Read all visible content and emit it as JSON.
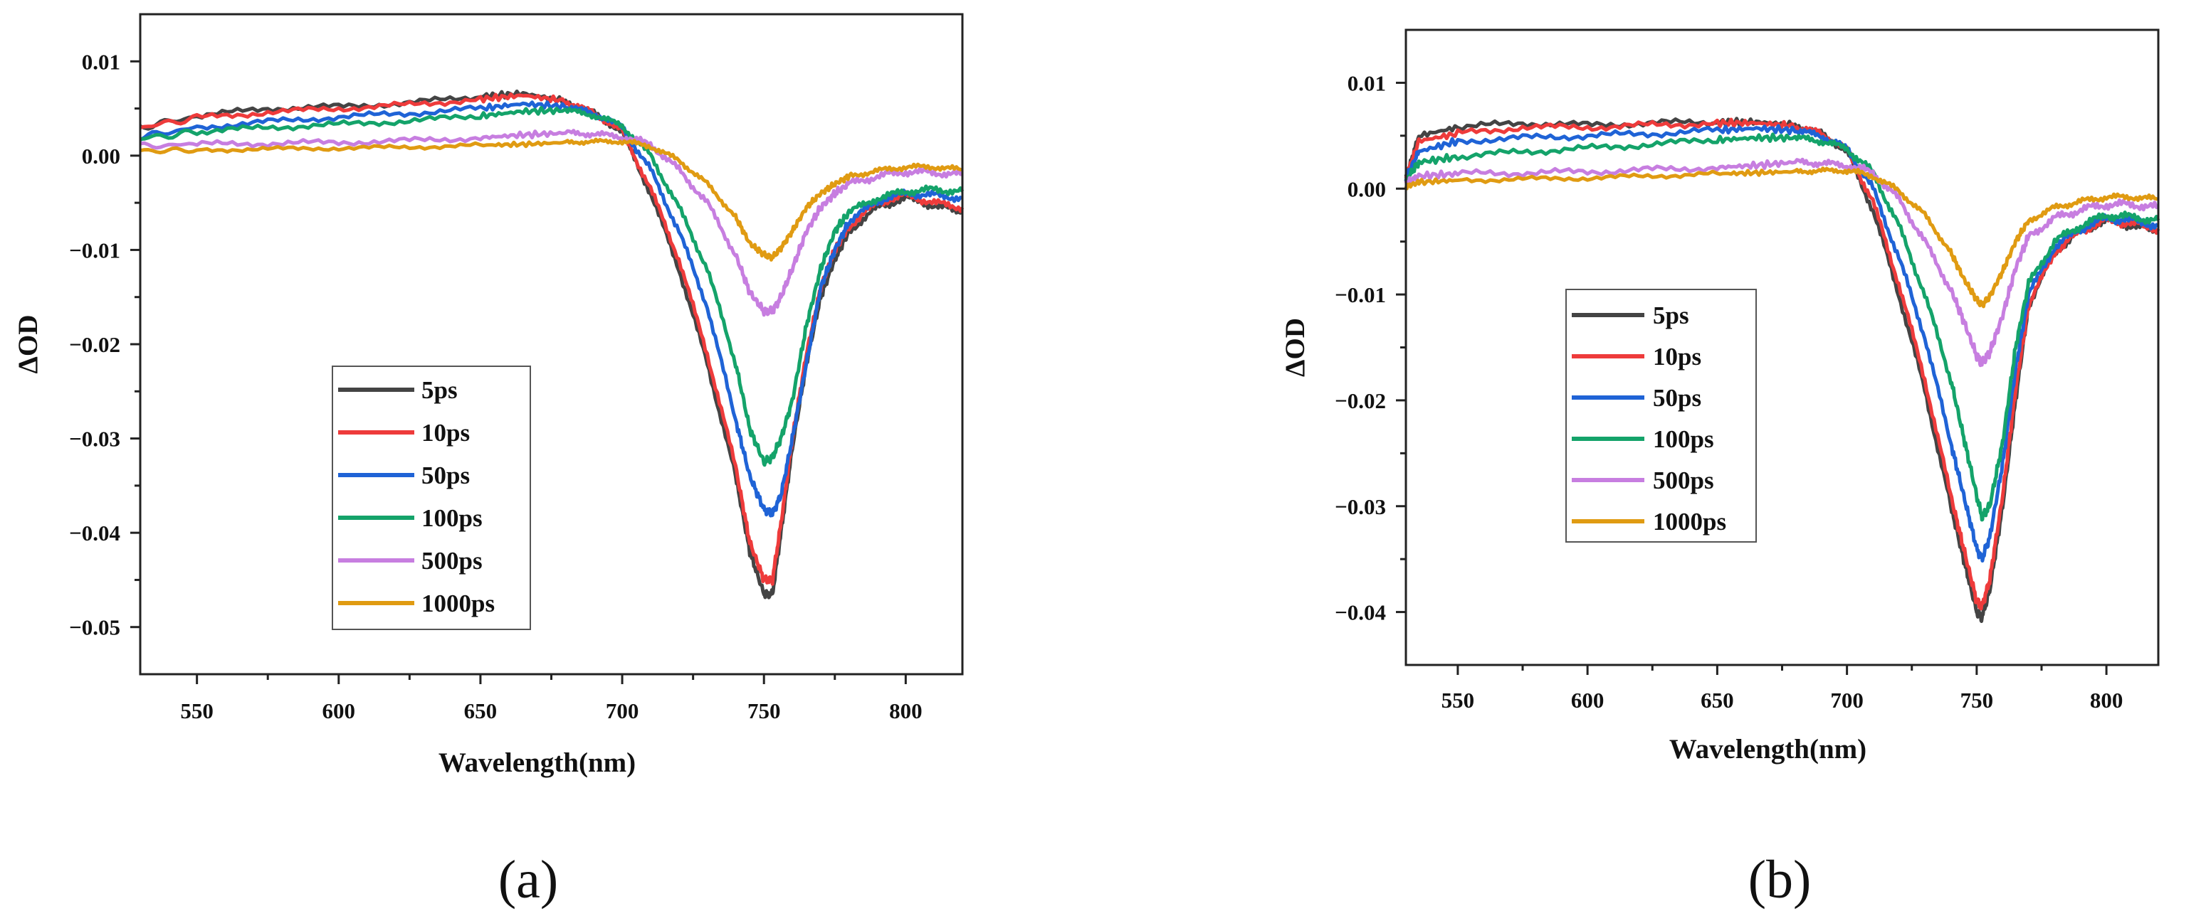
{
  "chart_data": [
    {
      "type": "line",
      "panel_label": "(a)",
      "xlabel": "Wavelength(nm)",
      "ylabel": "ΔOD",
      "xlim": [
        530,
        820
      ],
      "ylim": [
        -0.055,
        0.015
      ],
      "x_ticks": [
        550,
        600,
        650,
        700,
        750,
        800
      ],
      "x_tick_labels": [
        "550",
        "600",
        "650",
        "700",
        "750",
        "800"
      ],
      "y_ticks": [
        0.01,
        0.0,
        -0.01,
        -0.02,
        -0.03,
        -0.04,
        -0.05
      ],
      "y_tick_labels": [
        "0.01",
        "0.00",
        "−0.01",
        "−0.02",
        "−0.03",
        "−0.04",
        "−0.05"
      ],
      "legend_position": "lower-left",
      "series": [
        {
          "name": "5ps",
          "color": "#444444",
          "x": [
            530,
            550,
            575,
            600,
            625,
            650,
            665,
            680,
            690,
            700,
            710,
            720,
            730,
            740,
            745,
            750,
            753,
            756,
            760,
            765,
            770,
            775,
            780,
            790,
            800,
            810,
            820
          ],
          "y": [
            0.003,
            0.0042,
            0.005,
            0.0052,
            0.0056,
            0.0063,
            0.0066,
            0.0058,
            0.0045,
            0.0025,
            -0.004,
            -0.012,
            -0.022,
            -0.034,
            -0.042,
            -0.0465,
            -0.0465,
            -0.04,
            -0.031,
            -0.022,
            -0.015,
            -0.011,
            -0.008,
            -0.0055,
            -0.0045,
            -0.0053,
            -0.006
          ]
        },
        {
          "name": "10ps",
          "color": "#ee3b3b",
          "x": [
            530,
            550,
            575,
            600,
            625,
            650,
            665,
            680,
            690,
            700,
            710,
            720,
            730,
            740,
            745,
            750,
            753,
            756,
            760,
            765,
            770,
            775,
            780,
            790,
            800,
            810,
            820
          ],
          "y": [
            0.003,
            0.004,
            0.0046,
            0.005,
            0.0054,
            0.006,
            0.0064,
            0.0058,
            0.0045,
            0.0026,
            -0.0035,
            -0.011,
            -0.021,
            -0.033,
            -0.041,
            -0.045,
            -0.045,
            -0.039,
            -0.03,
            -0.021,
            -0.014,
            -0.01,
            -0.0075,
            -0.005,
            -0.0042,
            -0.005,
            -0.0055
          ]
        },
        {
          "name": "50ps",
          "color": "#1f63d6",
          "x": [
            530,
            550,
            575,
            600,
            625,
            650,
            665,
            680,
            690,
            700,
            710,
            720,
            730,
            740,
            745,
            750,
            753,
            756,
            760,
            765,
            770,
            775,
            780,
            790,
            800,
            810,
            820
          ],
          "y": [
            0.002,
            0.003,
            0.0036,
            0.0041,
            0.0045,
            0.005,
            0.0055,
            0.0052,
            0.0045,
            0.003,
            -0.0015,
            -0.008,
            -0.016,
            -0.028,
            -0.034,
            -0.0375,
            -0.038,
            -0.036,
            -0.03,
            -0.022,
            -0.014,
            -0.01,
            -0.007,
            -0.0048,
            -0.004,
            -0.0042,
            -0.0045
          ]
        },
        {
          "name": "100ps",
          "color": "#14a36a",
          "x": [
            530,
            550,
            575,
            600,
            625,
            650,
            665,
            680,
            690,
            700,
            710,
            720,
            730,
            740,
            745,
            750,
            753,
            756,
            760,
            765,
            770,
            775,
            780,
            790,
            800,
            810,
            820
          ],
          "y": [
            0.0018,
            0.0025,
            0.003,
            0.0033,
            0.0037,
            0.0042,
            0.0047,
            0.0048,
            0.0043,
            0.0032,
            0.0,
            -0.0055,
            -0.012,
            -0.022,
            -0.029,
            -0.0325,
            -0.032,
            -0.03,
            -0.026,
            -0.018,
            -0.012,
            -0.008,
            -0.006,
            -0.0045,
            -0.0038,
            -0.0036,
            -0.0038
          ]
        },
        {
          "name": "500ps",
          "color": "#c77ee0",
          "x": [
            530,
            550,
            575,
            600,
            625,
            650,
            665,
            680,
            690,
            700,
            710,
            720,
            730,
            740,
            745,
            750,
            753,
            756,
            760,
            765,
            770,
            775,
            780,
            790,
            800,
            810,
            820
          ],
          "y": [
            0.001,
            0.0012,
            0.0013,
            0.0014,
            0.0016,
            0.0019,
            0.0022,
            0.0024,
            0.0023,
            0.002,
            0.0012,
            -0.0015,
            -0.005,
            -0.0105,
            -0.0145,
            -0.0165,
            -0.0165,
            -0.015,
            -0.012,
            -0.008,
            -0.0055,
            -0.004,
            -0.003,
            -0.0022,
            -0.0017,
            -0.0018,
            -0.002
          ]
        },
        {
          "name": "1000ps",
          "color": "#e09b12",
          "x": [
            530,
            550,
            575,
            600,
            625,
            650,
            665,
            680,
            690,
            700,
            710,
            720,
            730,
            740,
            745,
            750,
            753,
            756,
            760,
            765,
            770,
            775,
            780,
            790,
            800,
            810,
            820
          ],
          "y": [
            0.0005,
            0.0006,
            0.0007,
            0.0008,
            0.0009,
            0.0011,
            0.0012,
            0.0014,
            0.0015,
            0.0015,
            0.001,
            -0.0005,
            -0.003,
            -0.0065,
            -0.0093,
            -0.0105,
            -0.0108,
            -0.0098,
            -0.008,
            -0.0055,
            -0.004,
            -0.003,
            -0.0022,
            -0.0016,
            -0.0012,
            -0.0012,
            -0.0015
          ]
        }
      ]
    },
    {
      "type": "line",
      "panel_label": "(b)",
      "xlabel": "Wavelength(nm)",
      "ylabel": "ΔOD",
      "xlim": [
        530,
        820
      ],
      "ylim": [
        -0.045,
        0.015
      ],
      "x_ticks": [
        550,
        600,
        650,
        700,
        750,
        800
      ],
      "x_tick_labels": [
        "550",
        "600",
        "650",
        "700",
        "750",
        "800"
      ],
      "y_ticks": [
        0.01,
        0.0,
        -0.01,
        -0.02,
        -0.03,
        -0.04
      ],
      "y_tick_labels": [
        "0.01",
        "0.00",
        "−0.01",
        "−0.02",
        "−0.03",
        "−0.04"
      ],
      "legend_position": "center-left",
      "series": [
        {
          "name": "5ps",
          "color": "#444444",
          "x": [
            530,
            535,
            550,
            575,
            600,
            625,
            650,
            665,
            680,
            690,
            700,
            710,
            720,
            730,
            740,
            745,
            750,
            752,
            755,
            760,
            765,
            770,
            780,
            790,
            800,
            810,
            820
          ],
          "y": [
            0.001,
            0.005,
            0.0058,
            0.0062,
            0.006,
            0.0062,
            0.0063,
            0.0063,
            0.006,
            0.0052,
            0.0035,
            -0.002,
            -0.01,
            -0.019,
            -0.03,
            -0.035,
            -0.04,
            -0.0405,
            -0.038,
            -0.03,
            -0.02,
            -0.011,
            -0.006,
            -0.004,
            -0.003,
            -0.0035,
            -0.004
          ]
        },
        {
          "name": "10ps",
          "color": "#ee3b3b",
          "x": [
            530,
            535,
            550,
            575,
            600,
            625,
            650,
            665,
            680,
            690,
            700,
            710,
            720,
            730,
            740,
            745,
            750,
            752,
            755,
            760,
            765,
            770,
            780,
            790,
            800,
            810,
            820
          ],
          "y": [
            0.001,
            0.0045,
            0.0052,
            0.0058,
            0.0058,
            0.006,
            0.0062,
            0.0062,
            0.0059,
            0.0052,
            0.0037,
            -0.0012,
            -0.009,
            -0.018,
            -0.029,
            -0.034,
            -0.039,
            -0.0395,
            -0.037,
            -0.029,
            -0.019,
            -0.011,
            -0.006,
            -0.004,
            -0.003,
            -0.0033,
            -0.0038
          ]
        },
        {
          "name": "50ps",
          "color": "#1f63d6",
          "x": [
            530,
            535,
            550,
            575,
            600,
            625,
            650,
            665,
            680,
            690,
            700,
            710,
            720,
            730,
            740,
            745,
            750,
            752,
            755,
            760,
            765,
            770,
            780,
            790,
            800,
            810,
            820
          ],
          "y": [
            0.001,
            0.0035,
            0.0045,
            0.0048,
            0.005,
            0.0052,
            0.0055,
            0.0057,
            0.0055,
            0.005,
            0.0038,
            0.0,
            -0.0065,
            -0.014,
            -0.024,
            -0.029,
            -0.034,
            -0.035,
            -0.033,
            -0.026,
            -0.017,
            -0.01,
            -0.0055,
            -0.0038,
            -0.0028,
            -0.003,
            -0.0035
          ]
        },
        {
          "name": "100ps",
          "color": "#14a36a",
          "x": [
            530,
            535,
            550,
            575,
            600,
            625,
            650,
            665,
            680,
            690,
            700,
            710,
            720,
            730,
            740,
            745,
            750,
            752,
            755,
            760,
            765,
            770,
            780,
            790,
            800,
            810,
            820
          ],
          "y": [
            0.0008,
            0.0025,
            0.003,
            0.0035,
            0.0038,
            0.0042,
            0.0046,
            0.0048,
            0.0048,
            0.0045,
            0.0038,
            0.0015,
            -0.0035,
            -0.01,
            -0.018,
            -0.0235,
            -0.029,
            -0.031,
            -0.03,
            -0.024,
            -0.015,
            -0.009,
            -0.005,
            -0.0035,
            -0.0025,
            -0.0027,
            -0.003
          ]
        },
        {
          "name": "500ps",
          "color": "#c77ee0",
          "x": [
            530,
            535,
            550,
            575,
            600,
            625,
            650,
            665,
            680,
            690,
            700,
            710,
            720,
            730,
            740,
            745,
            750,
            752,
            755,
            760,
            765,
            770,
            780,
            790,
            800,
            810,
            820
          ],
          "y": [
            0.0005,
            0.0012,
            0.0014,
            0.0015,
            0.0016,
            0.0018,
            0.002,
            0.0022,
            0.0025,
            0.0024,
            0.0022,
            0.0015,
            -0.001,
            -0.005,
            -0.0095,
            -0.0125,
            -0.0158,
            -0.0165,
            -0.0155,
            -0.012,
            -0.0075,
            -0.0045,
            -0.0028,
            -0.002,
            -0.0015,
            -0.0015,
            -0.0018
          ]
        },
        {
          "name": "1000ps",
          "color": "#e09b12",
          "x": [
            530,
            535,
            550,
            575,
            600,
            625,
            650,
            665,
            680,
            690,
            700,
            710,
            720,
            730,
            740,
            745,
            750,
            752,
            755,
            760,
            765,
            770,
            780,
            790,
            800,
            810,
            820
          ],
          "y": [
            0.0002,
            0.0006,
            0.0008,
            0.0009,
            0.001,
            0.0012,
            0.0014,
            0.0015,
            0.0016,
            0.0017,
            0.0017,
            0.0012,
            -0.0002,
            -0.0025,
            -0.006,
            -0.0085,
            -0.0105,
            -0.011,
            -0.0102,
            -0.0078,
            -0.005,
            -0.003,
            -0.0018,
            -0.0012,
            -0.0008,
            -0.0008,
            -0.001
          ]
        }
      ]
    }
  ]
}
